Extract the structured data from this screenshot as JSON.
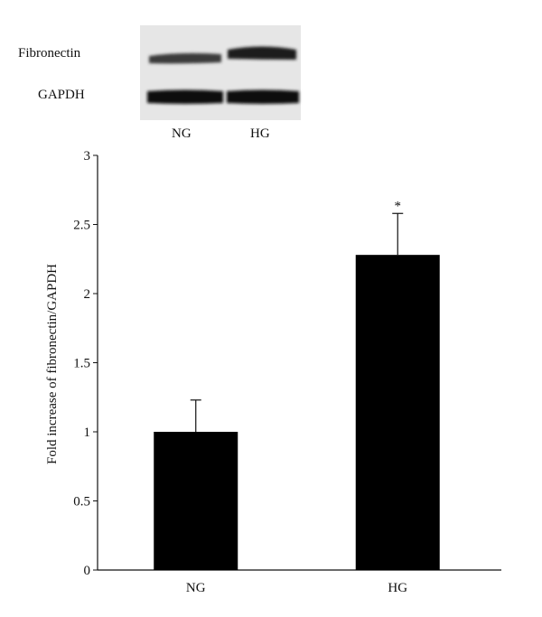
{
  "blot": {
    "rows": [
      "Fibronectin",
      "GAPDH"
    ],
    "lanes": [
      "NG",
      "HG"
    ]
  },
  "chart_data": {
    "type": "bar",
    "categories": [
      "NG",
      "HG"
    ],
    "values": [
      1.0,
      2.28
    ],
    "error": [
      0.23,
      0.3
    ],
    "annotations": [
      "",
      "*"
    ],
    "ylabel": "Fold increase of fibronectin/GAPDH",
    "xlabel": "",
    "ylim": [
      0,
      3
    ],
    "yticks": [
      "0",
      "0.5",
      "1",
      "1.5",
      "2",
      "2.5",
      "3"
    ],
    "grid": false,
    "bar_color": "#000000"
  }
}
